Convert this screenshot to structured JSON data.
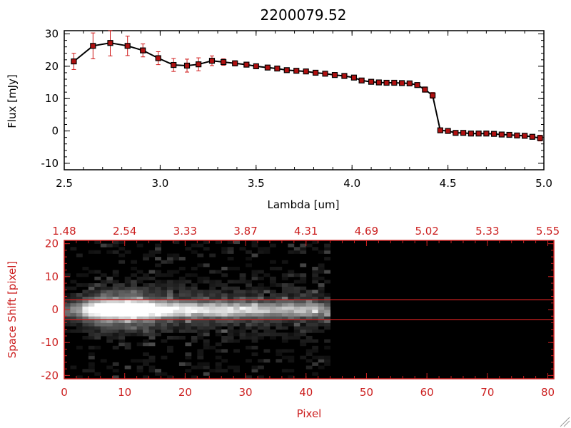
{
  "colors": {
    "axis_red": "#cc2020",
    "marker_fill": "#b01010",
    "errorbar": "#d01818",
    "line": "#000000"
  },
  "chart_data": [
    {
      "type": "line",
      "title": "2200079.52",
      "xlabel": "Lambda [um]",
      "ylabel": "Flux [mJy]",
      "xlim": [
        2.5,
        5.0
      ],
      "ylim": [
        -12,
        31
      ],
      "xticks": [
        "2.5",
        "3.0",
        "3.5",
        "4.0",
        "4.5",
        "5.0"
      ],
      "yticks": [
        "-10",
        "0",
        "10",
        "20",
        "30"
      ],
      "x": [
        2.55,
        2.65,
        2.74,
        2.83,
        2.91,
        2.99,
        3.07,
        3.14,
        3.2,
        3.27,
        3.33,
        3.39,
        3.45,
        3.5,
        3.56,
        3.61,
        3.66,
        3.71,
        3.76,
        3.81,
        3.86,
        3.91,
        3.96,
        4.01,
        4.05,
        4.1,
        4.14,
        4.18,
        4.22,
        4.26,
        4.3,
        4.34,
        4.38,
        4.42,
        4.46,
        4.5,
        4.54,
        4.58,
        4.62,
        4.66,
        4.7,
        4.74,
        4.78,
        4.82,
        4.86,
        4.9,
        4.94,
        4.98
      ],
      "y": [
        21.5,
        26.3,
        27.2,
        26.3,
        24.9,
        22.5,
        20.4,
        20.2,
        20.6,
        21.7,
        21.3,
        20.9,
        20.5,
        20.0,
        19.6,
        19.3,
        18.8,
        18.6,
        18.4,
        18.0,
        17.7,
        17.3,
        17.0,
        16.5,
        15.6,
        15.2,
        15.0,
        14.9,
        14.9,
        14.8,
        14.7,
        14.2,
        12.8,
        11.0,
        0.2,
        0.0,
        -0.6,
        -0.6,
        -0.8,
        -0.8,
        -0.8,
        -0.9,
        -1.1,
        -1.2,
        -1.4,
        -1.5,
        -1.8,
        -2.2
      ],
      "yerr": [
        2.5,
        4.0,
        4.0,
        3.0,
        2.0,
        2.0,
        2.0,
        2.0,
        2.0,
        1.5,
        1.0,
        0.8,
        0.6,
        0.6,
        0.6,
        0.6,
        0.6,
        0.6,
        0.6,
        0.6,
        0.6,
        0.6,
        0.6,
        0.6,
        0.6,
        0.6,
        0.6,
        0.6,
        0.6,
        0.6,
        0.6,
        0.6,
        0.8,
        0.9,
        0.6,
        0.5,
        0.5,
        0.5,
        0.5,
        0.5,
        0.5,
        0.5,
        0.5,
        0.5,
        0.6,
        0.6,
        0.7,
        0.9
      ],
      "grid": false
    },
    {
      "type": "heatmap",
      "xlabel": "Pixel",
      "ylabel": "Space Shift [pixel]",
      "xlim": [
        0,
        81
      ],
      "ylim": [
        -21,
        21
      ],
      "xticks": [
        "0",
        "10",
        "20",
        "30",
        "40",
        "50",
        "60",
        "70",
        "80"
      ],
      "yticks": [
        "-20",
        "-10",
        "0",
        "10",
        "20"
      ],
      "top_axis_ticks": [
        "1.48",
        "2.54",
        "3.33",
        "3.87",
        "4.31",
        "4.69",
        "5.02",
        "5.33",
        "5.55"
      ],
      "spectrum_extent_pixels": [
        0,
        44
      ],
      "trace_center": 0,
      "extraction_lines": [
        3,
        -3
      ],
      "colormap": "grayscale"
    }
  ]
}
